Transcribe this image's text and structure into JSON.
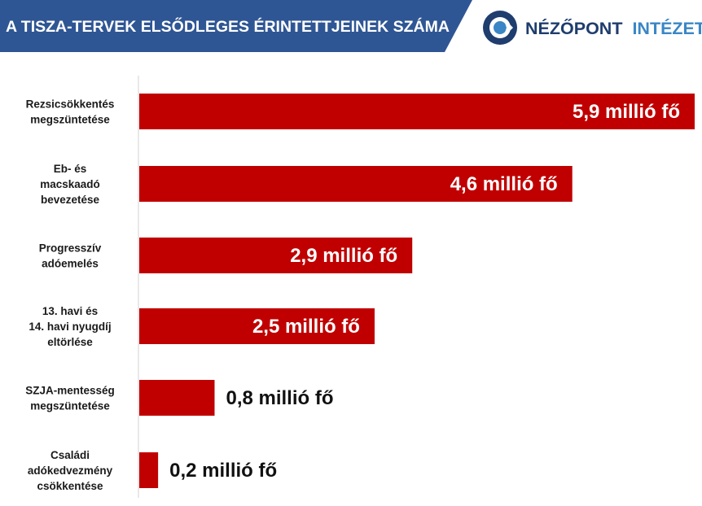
{
  "header": {
    "title": "A TISZA-TERVEK ELSŐDLEGES ÉRINTETTJEINEK SZÁMA",
    "logo": {
      "name_primary": "NÉZŐPONT",
      "name_secondary": "INTÉZET",
      "icon": "nezopont-logo-icon"
    }
  },
  "colors": {
    "banner": "#2f5694",
    "bar": "#c00000",
    "logo_primary": "#1f3d6e",
    "logo_secondary": "#3a86c6"
  },
  "chart_data": {
    "type": "bar",
    "orientation": "horizontal",
    "title": "A TISZA-TERVEK ELSŐDLEGES ÉRINTETTJEINEK SZÁMA",
    "unit": "millió fő",
    "categories": [
      [
        "Rezsicsökkentés",
        "megszüntetése"
      ],
      [
        "Eb- és",
        "macskaadó",
        "bevezetése"
      ],
      [
        "Progresszív",
        "adóemelés"
      ],
      [
        "13. havi és",
        "14. havi nyugdíj",
        "eltörlése"
      ],
      [
        "SZJA-mentesség",
        "megszüntetése"
      ],
      [
        "Családi",
        "adókedvezmény",
        "csökkentése"
      ]
    ],
    "values": [
      5.9,
      4.6,
      2.9,
      2.5,
      0.8,
      0.2
    ],
    "data_labels": [
      "5,9 millió fő",
      "4,6 millió fő",
      "2,9 millió fő",
      "2,5 millió fő",
      "0,8 millió fő",
      "0,2 millió fő"
    ],
    "xlim": [
      0,
      5.9
    ],
    "grid": false,
    "legend": "none"
  }
}
